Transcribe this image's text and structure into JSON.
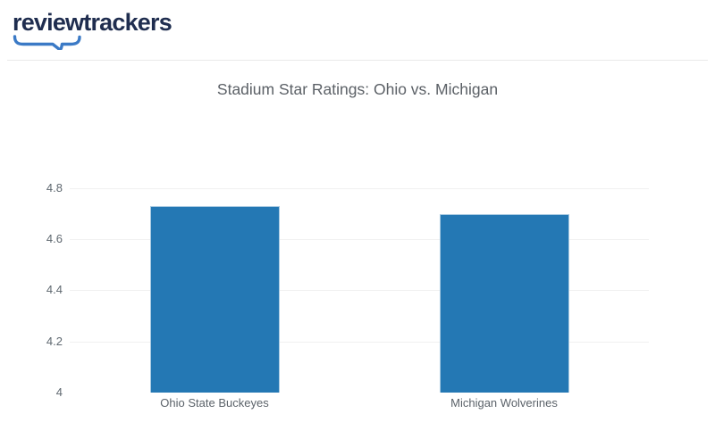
{
  "header": {
    "logo_text": "reviewtrackers"
  },
  "chart_data": {
    "type": "bar",
    "title": "Stadium Star Ratings: Ohio vs. Michigan",
    "categories": [
      "Ohio State Buckeyes",
      "Michigan Wolverines"
    ],
    "values": [
      4.73,
      4.7
    ],
    "xlabel": "",
    "ylabel": "",
    "ylim": [
      4,
      4.8
    ],
    "yticks": [
      4,
      4.2,
      4.4,
      4.6,
      4.8
    ],
    "ytick_labels": [
      "4",
      "4.2",
      "4.4",
      "4.6",
      "4.8"
    ],
    "grid": true,
    "legend": "none",
    "bar_color": "#2478b4"
  },
  "colors": {
    "logo_navy": "#1f2d4f",
    "logo_blue": "#3b7ac6",
    "title_gray": "#5b6066",
    "axis_label_gray": "#5f6870",
    "gridline": "#f1f1f1",
    "bar_blue": "#2478b4",
    "divider": "#e9e9e9"
  }
}
